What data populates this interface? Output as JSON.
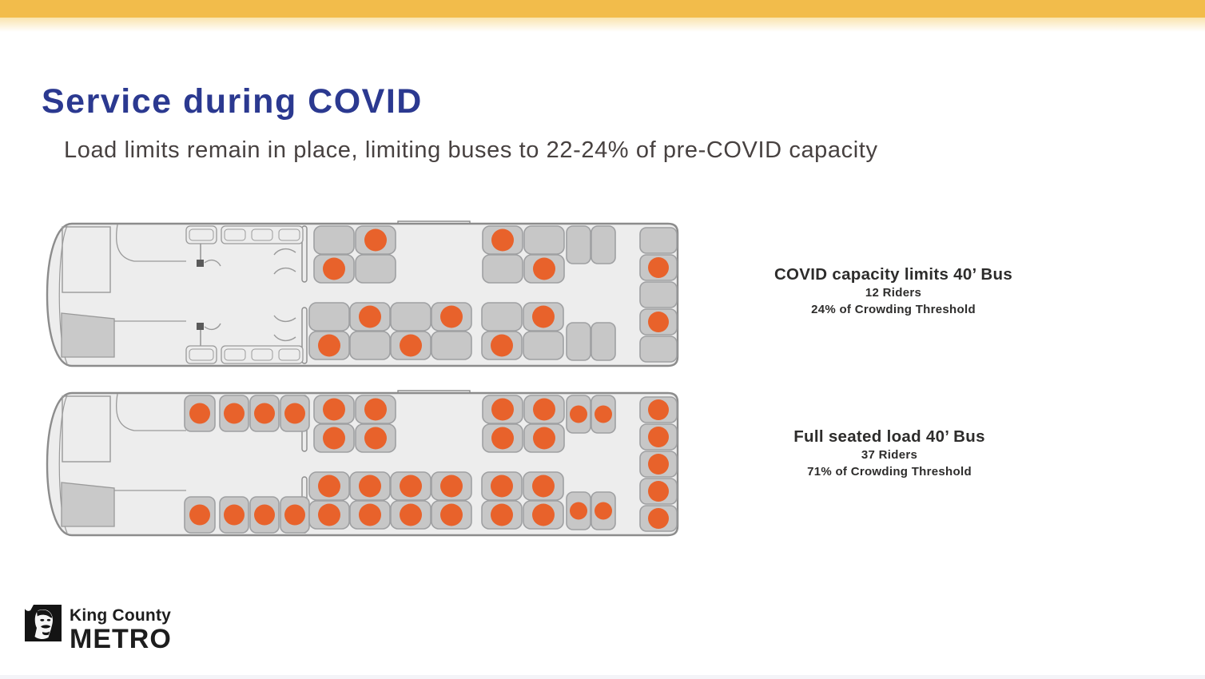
{
  "slide": {
    "title": "Service during COVID",
    "subtitle": "Load limits remain in place, limiting buses to 22-24% of pre-COVID capacity"
  },
  "colors": {
    "top_bar": "#F2BC4B",
    "title_text": "#2B3990",
    "subtitle_text": "#474140",
    "caption_text": "#2D2C2B",
    "bus_shell": "#EDEDED",
    "bus_outline": "#8C8C8C",
    "line_gray": "#9A9A9A",
    "seat_fill": "#C7C7C7",
    "seat_stroke": "#9FA0A2",
    "occupied": "#E8622B",
    "stairs_fill": "#C9C9C9"
  },
  "buses": [
    {
      "id": "covid-capacity-limit",
      "caption": {
        "title": "COVID capacity limits 40’ Bus",
        "riders": "12 Riders",
        "threshold": "24% of Crowding Threshold"
      },
      "front_seats": "folded",
      "occupancy": {
        "front_upper": [
          0,
          0,
          0,
          0
        ],
        "front_lower": [
          0,
          0,
          0,
          0
        ],
        "upper_pairs": [
          [
            0,
            1
          ],
          [
            1,
            0
          ],
          [
            1,
            0
          ],
          [
            0,
            1
          ]
        ],
        "lower_pairs": [
          [
            1,
            0
          ],
          [
            0,
            1
          ],
          [
            1,
            0
          ],
          [
            0,
            1
          ],
          [
            1,
            0
          ],
          [
            0,
            1
          ]
        ],
        "upper_side_pair": [
          0,
          0
        ],
        "lower_side_pair": [
          0,
          0
        ],
        "rear_row": [
          0,
          1,
          0,
          1,
          0
        ]
      }
    },
    {
      "id": "full-seated-load",
      "caption": {
        "title": "Full seated load 40’ Bus",
        "riders": "37 Riders",
        "threshold": "71% of Crowding Threshold"
      },
      "front_seats": "open",
      "occupancy": {
        "front_upper": [
          1,
          1,
          1,
          1
        ],
        "front_lower": [
          1,
          1,
          1,
          1
        ],
        "upper_pairs": [
          [
            1,
            1
          ],
          [
            1,
            1
          ],
          [
            1,
            1
          ],
          [
            1,
            1
          ]
        ],
        "lower_pairs": [
          [
            1,
            1
          ],
          [
            1,
            1
          ],
          [
            1,
            1
          ],
          [
            1,
            1
          ],
          [
            1,
            1
          ],
          [
            1,
            1
          ]
        ],
        "upper_side_pair": [
          1,
          1
        ],
        "lower_side_pair": [
          1,
          1
        ],
        "rear_row": [
          1,
          1,
          1,
          1,
          1
        ]
      }
    }
  ],
  "logo": {
    "line1": "King County",
    "line2": "METRO"
  }
}
